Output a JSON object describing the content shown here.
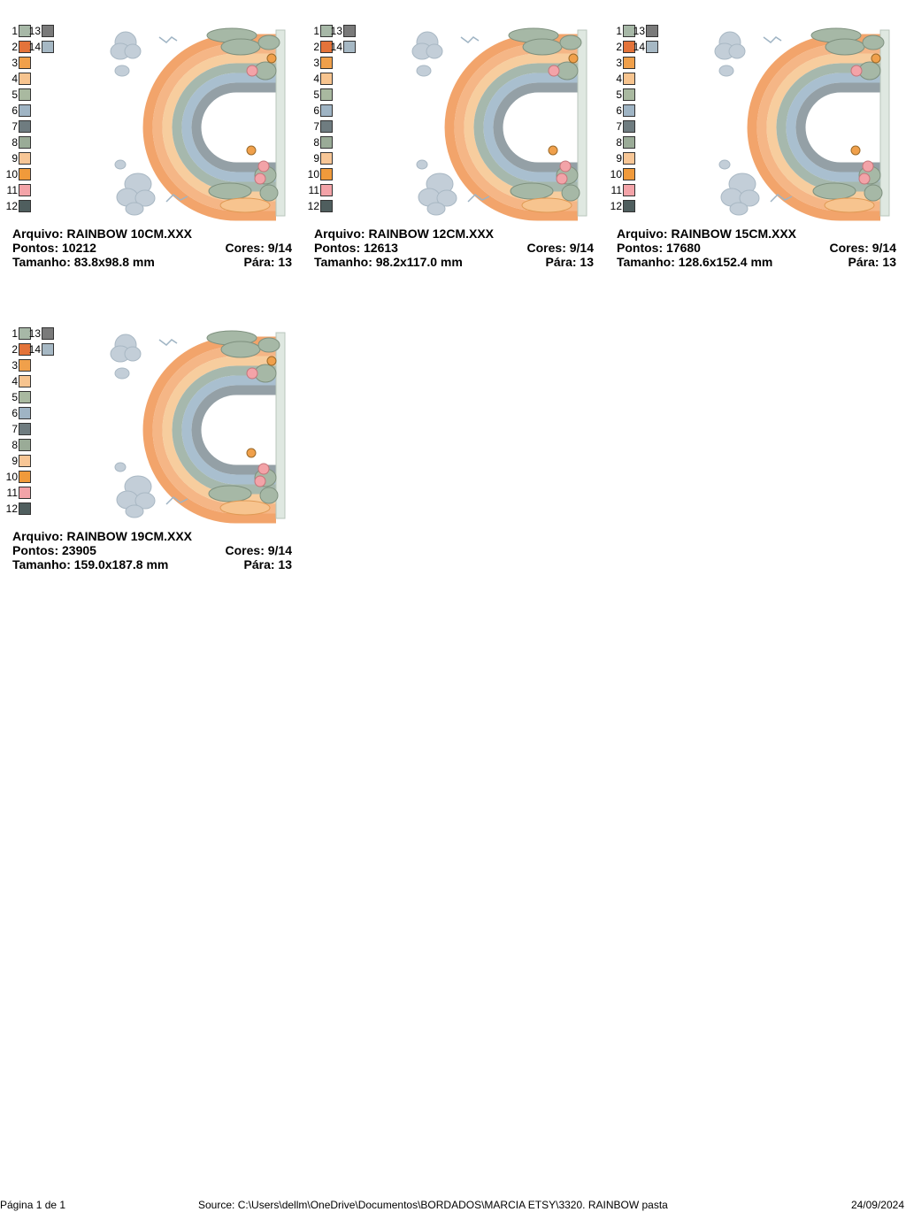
{
  "palette": [
    {
      "num": "1",
      "color": "#a7b8a7"
    },
    {
      "num": "2",
      "color": "#e3733a"
    },
    {
      "num": "3",
      "color": "#f0a04b"
    },
    {
      "num": "4",
      "color": "#f7c48f"
    },
    {
      "num": "5",
      "color": "#a9b9a0"
    },
    {
      "num": "6",
      "color": "#9fb4c4"
    },
    {
      "num": "7",
      "color": "#6f7c80"
    },
    {
      "num": "8",
      "color": "#9aab97"
    },
    {
      "num": "9",
      "color": "#f7c696"
    },
    {
      "num": "10",
      "color": "#f09a3b"
    },
    {
      "num": "11",
      "color": "#f3a3a8"
    },
    {
      "num": "12",
      "color": "#4f5e5e"
    },
    {
      "num": "13",
      "color": "#7a7a7a"
    },
    {
      "num": "14",
      "color": "#a6b8c4"
    }
  ],
  "designs": [
    {
      "arquivo": "Arquivo: RAINBOW 10CM.XXX",
      "pontos": "Pontos: 10212",
      "cores": "Cores: 9/14",
      "tamanho": "Tamanho: 83.8x98.8 mm",
      "para": "Pára: 13"
    },
    {
      "arquivo": "Arquivo: RAINBOW 12CM.XXX",
      "pontos": "Pontos: 12613",
      "cores": "Cores: 9/14",
      "tamanho": "Tamanho: 98.2x117.0 mm",
      "para": "Pára: 13"
    },
    {
      "arquivo": "Arquivo: RAINBOW 15CM.XXX",
      "pontos": "Pontos: 17680",
      "cores": "Cores: 9/14",
      "tamanho": "Tamanho: 128.6x152.4 mm",
      "para": "Pára: 13"
    },
    {
      "arquivo": "Arquivo: RAINBOW 19CM.XXX",
      "pontos": "Pontos: 23905",
      "cores": "Cores: 9/14",
      "tamanho": "Tamanho: 159.0x187.8 mm",
      "para": "Pára: 13"
    }
  ],
  "footer": {
    "page": "Página 1 de 1",
    "source": "Source: C:\\Users\\dellm\\OneDrive\\Documentos\\BORDADOS\\MARCIA ETSY\\3320. RAINBOW pasta",
    "date": "24/09/2024"
  }
}
